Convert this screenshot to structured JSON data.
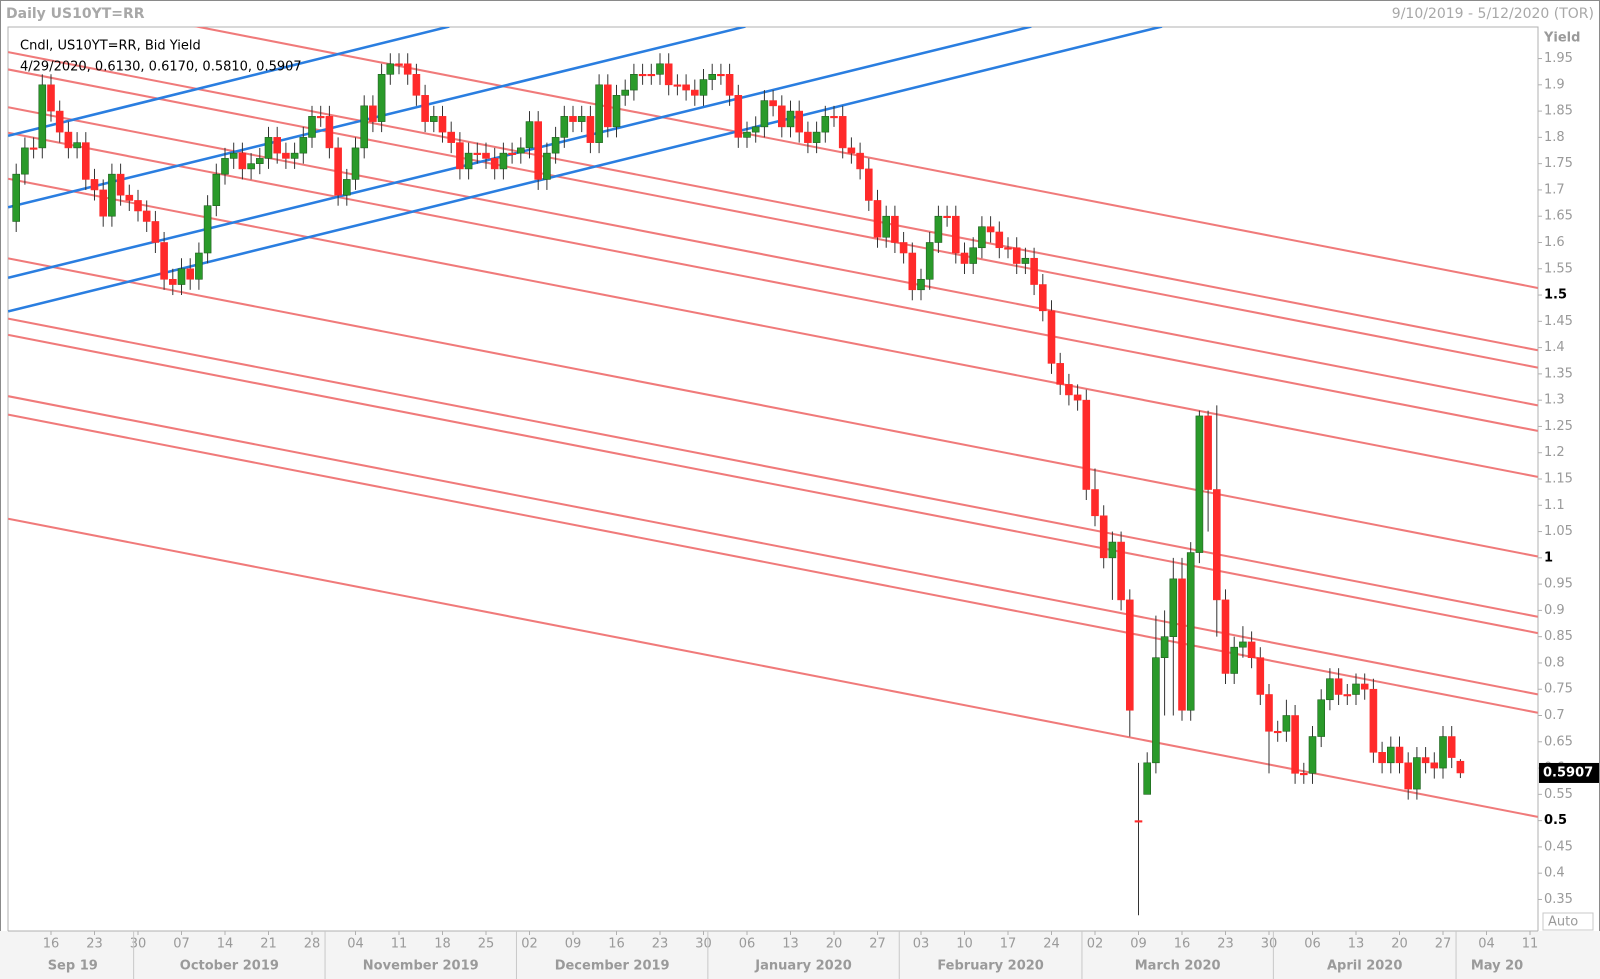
{
  "chart_data": {
    "type": "candlestick",
    "title": "Daily US10YT=RR",
    "date_range": "9/10/2019 - 5/12/2020 (TOR)",
    "legend_line1": "Cndl, US10YT=RR, Bid Yield",
    "legend_line2": "4/29/2020, 0.6130, 0.6170, 0.5810, 0.5907",
    "y_label": "Yield",
    "scale_mode": "Auto",
    "up_color": "#2a9a2a",
    "down_color": "#ff2a2a",
    "ylim": [
      0.29,
      2.01
    ],
    "yticks": [
      0.35,
      0.4,
      0.45,
      0.5,
      0.55,
      0.6,
      0.65,
      0.7,
      0.75,
      0.8,
      0.85,
      0.9,
      0.95,
      1,
      1.05,
      1.1,
      1.15,
      1.2,
      1.25,
      1.3,
      1.35,
      1.4,
      1.45,
      1.5,
      1.55,
      1.6,
      1.65,
      1.7,
      1.75,
      1.8,
      1.85,
      1.9,
      1.95
    ],
    "day_ticks": [
      "16",
      "23",
      "30",
      "07",
      "14",
      "21",
      "28",
      "04",
      "11",
      "18",
      "25",
      "02",
      "09",
      "16",
      "23",
      "30",
      "06",
      "13",
      "20",
      "27",
      "03",
      "10",
      "17",
      "24",
      "02",
      "09",
      "16",
      "23",
      "30",
      "06",
      "13",
      "20",
      "27",
      "04",
      "11"
    ],
    "month_labels": [
      "Sep 19",
      "October 2019",
      "November 2019",
      "December 2019",
      "January 2020",
      "February 2020",
      "March 2020",
      "April 2020",
      "May 20"
    ],
    "open": [
      1.64,
      1.73,
      1.78,
      1.78,
      1.9,
      1.85,
      1.81,
      1.78,
      1.79,
      1.72,
      1.7,
      1.65,
      1.73,
      1.69,
      1.68,
      1.66,
      1.64,
      1.6,
      1.53,
      1.52,
      1.55,
      1.53,
      1.58,
      1.67,
      1.73,
      1.76,
      1.77,
      1.74,
      1.75,
      1.76,
      1.8,
      1.77,
      1.76,
      1.77,
      1.8,
      1.84,
      1.84,
      1.78,
      1.69,
      1.72,
      1.78,
      1.86,
      1.83,
      1.92,
      1.94,
      1.94,
      1.92,
      1.88,
      1.83,
      1.84,
      1.81,
      1.79,
      1.74,
      1.77,
      1.77,
      1.76,
      1.74,
      1.77,
      1.77,
      1.78,
      1.83,
      1.72,
      1.77,
      1.8,
      1.84,
      1.83,
      1.84,
      1.79,
      1.9,
      1.82,
      1.88,
      1.89,
      1.92,
      1.92,
      1.92,
      1.94,
      1.9,
      1.9,
      1.89,
      1.88,
      1.91,
      1.92,
      1.92,
      1.88,
      1.8,
      1.81,
      1.82,
      1.87,
      1.86,
      1.82,
      1.85,
      1.81,
      1.79,
      1.81,
      1.84,
      1.84,
      1.78,
      1.77,
      1.74,
      1.68,
      1.61,
      1.65,
      1.6,
      1.58,
      1.51,
      1.53,
      1.6,
      1.65,
      1.65,
      1.58,
      1.56,
      1.59,
      1.63,
      1.62,
      1.59,
      1.59,
      1.56,
      1.57,
      1.52,
      1.47,
      1.37,
      1.33,
      1.31,
      1.3,
      1.13,
      1.08,
      1.0,
      1.03,
      0.92,
      0.5,
      0.55,
      0.61,
      0.81,
      0.85,
      0.96,
      0.71,
      1.01,
      1.27,
      1.13,
      0.92,
      0.78,
      0.83,
      0.84,
      0.81,
      0.74,
      0.67,
      0.67,
      0.7,
      0.59,
      0.59,
      0.66,
      0.73,
      0.77,
      0.74,
      0.74,
      0.76,
      0.75,
      0.63,
      0.61,
      0.64,
      0.61,
      0.56,
      0.62,
      0.61,
      0.6,
      0.66,
      0.613
    ],
    "high": [
      1.75,
      1.8,
      1.8,
      1.92,
      1.92,
      1.87,
      1.83,
      1.81,
      1.81,
      1.74,
      1.72,
      1.75,
      1.75,
      1.71,
      1.7,
      1.68,
      1.66,
      1.62,
      1.55,
      1.57,
      1.57,
      1.6,
      1.69,
      1.75,
      1.78,
      1.79,
      1.79,
      1.77,
      1.78,
      1.82,
      1.82,
      1.79,
      1.79,
      1.82,
      1.86,
      1.86,
      1.86,
      1.8,
      1.74,
      1.8,
      1.88,
      1.88,
      1.94,
      1.96,
      1.96,
      1.96,
      1.94,
      1.9,
      1.86,
      1.86,
      1.83,
      1.81,
      1.79,
      1.79,
      1.79,
      1.78,
      1.79,
      1.79,
      1.8,
      1.85,
      1.85,
      1.79,
      1.82,
      1.86,
      1.86,
      1.86,
      1.86,
      1.92,
      1.92,
      1.9,
      1.91,
      1.94,
      1.94,
      1.94,
      1.96,
      1.96,
      1.92,
      1.92,
      1.91,
      1.93,
      1.94,
      1.94,
      1.94,
      1.9,
      1.83,
      1.84,
      1.89,
      1.89,
      1.88,
      1.87,
      1.87,
      1.83,
      1.83,
      1.86,
      1.86,
      1.86,
      1.8,
      1.79,
      1.76,
      1.7,
      1.67,
      1.67,
      1.62,
      1.6,
      1.55,
      1.62,
      1.67,
      1.67,
      1.67,
      1.6,
      1.61,
      1.65,
      1.65,
      1.64,
      1.61,
      1.61,
      1.59,
      1.59,
      1.54,
      1.49,
      1.39,
      1.35,
      1.33,
      1.32,
      1.17,
      1.1,
      1.05,
      1.05,
      0.94,
      0.61,
      0.63,
      0.89,
      0.9,
      1.0,
      1.0,
      1.03,
      1.28,
      1.28,
      1.29,
      0.94,
      0.85,
      0.87,
      0.86,
      0.83,
      0.76,
      0.69,
      0.73,
      0.72,
      0.61,
      0.68,
      0.75,
      0.79,
      0.79,
      0.76,
      0.78,
      0.78,
      0.77,
      0.65,
      0.66,
      0.66,
      0.63,
      0.64,
      0.64,
      0.63,
      0.68,
      0.68,
      0.617
    ],
    "low": [
      1.62,
      1.71,
      1.76,
      1.76,
      1.83,
      1.79,
      1.76,
      1.76,
      1.7,
      1.68,
      1.63,
      1.63,
      1.67,
      1.66,
      1.64,
      1.62,
      1.58,
      1.51,
      1.5,
      1.5,
      1.51,
      1.51,
      1.56,
      1.65,
      1.71,
      1.74,
      1.72,
      1.72,
      1.73,
      1.74,
      1.75,
      1.74,
      1.74,
      1.75,
      1.78,
      1.82,
      1.76,
      1.67,
      1.67,
      1.7,
      1.76,
      1.81,
      1.81,
      1.9,
      1.92,
      1.9,
      1.86,
      1.81,
      1.81,
      1.79,
      1.77,
      1.72,
      1.72,
      1.75,
      1.74,
      1.72,
      1.72,
      1.75,
      1.75,
      1.76,
      1.7,
      1.7,
      1.75,
      1.78,
      1.81,
      1.81,
      1.77,
      1.77,
      1.8,
      1.8,
      1.86,
      1.87,
      1.9,
      1.9,
      1.9,
      1.88,
      1.88,
      1.87,
      1.86,
      1.86,
      1.89,
      1.9,
      1.86,
      1.78,
      1.78,
      1.79,
      1.8,
      1.84,
      1.8,
      1.8,
      1.79,
      1.77,
      1.77,
      1.79,
      1.82,
      1.76,
      1.75,
      1.72,
      1.66,
      1.59,
      1.59,
      1.58,
      1.56,
      1.49,
      1.49,
      1.51,
      1.58,
      1.63,
      1.56,
      1.54,
      1.54,
      1.57,
      1.6,
      1.57,
      1.57,
      1.54,
      1.54,
      1.5,
      1.45,
      1.35,
      1.31,
      1.29,
      1.28,
      1.11,
      1.06,
      0.98,
      0.92,
      0.9,
      0.66,
      0.32,
      0.56,
      0.59,
      0.7,
      0.7,
      0.69,
      0.69,
      0.99,
      1.05,
      0.85,
      0.76,
      0.76,
      0.81,
      0.79,
      0.72,
      0.59,
      0.65,
      0.65,
      0.57,
      0.57,
      0.57,
      0.64,
      0.71,
      0.72,
      0.72,
      0.72,
      0.73,
      0.61,
      0.59,
      0.59,
      0.59,
      0.54,
      0.54,
      0.59,
      0.58,
      0.58,
      0.6,
      0.581
    ],
    "close": [
      1.73,
      1.78,
      1.78,
      1.9,
      1.85,
      1.81,
      1.78,
      1.79,
      1.72,
      1.7,
      1.65,
      1.73,
      1.69,
      1.68,
      1.66,
      1.64,
      1.6,
      1.53,
      1.52,
      1.55,
      1.53,
      1.58,
      1.67,
      1.73,
      1.76,
      1.77,
      1.74,
      1.75,
      1.76,
      1.8,
      1.77,
      1.76,
      1.77,
      1.8,
      1.84,
      1.84,
      1.78,
      1.69,
      1.72,
      1.78,
      1.86,
      1.83,
      1.92,
      1.94,
      1.94,
      1.92,
      1.88,
      1.83,
      1.84,
      1.81,
      1.79,
      1.74,
      1.77,
      1.77,
      1.76,
      1.74,
      1.77,
      1.77,
      1.78,
      1.83,
      1.72,
      1.77,
      1.8,
      1.84,
      1.83,
      1.84,
      1.79,
      1.9,
      1.82,
      1.88,
      1.89,
      1.92,
      1.92,
      1.92,
      1.94,
      1.9,
      1.9,
      1.89,
      1.88,
      1.91,
      1.92,
      1.92,
      1.88,
      1.8,
      1.81,
      1.82,
      1.87,
      1.86,
      1.82,
      1.85,
      1.81,
      1.79,
      1.81,
      1.84,
      1.84,
      1.78,
      1.77,
      1.74,
      1.68,
      1.61,
      1.65,
      1.6,
      1.58,
      1.51,
      1.53,
      1.6,
      1.65,
      1.65,
      1.58,
      1.56,
      1.59,
      1.63,
      1.62,
      1.59,
      1.59,
      1.56,
      1.57,
      1.52,
      1.47,
      1.37,
      1.33,
      1.31,
      1.3,
      1.13,
      1.08,
      1.0,
      1.03,
      0.92,
      0.71,
      0.5,
      0.61,
      0.81,
      0.85,
      0.96,
      0.71,
      1.01,
      1.27,
      1.13,
      0.92,
      0.78,
      0.83,
      0.84,
      0.81,
      0.74,
      0.67,
      0.67,
      0.7,
      0.59,
      0.59,
      0.66,
      0.73,
      0.77,
      0.74,
      0.74,
      0.76,
      0.75,
      0.63,
      0.61,
      0.64,
      0.61,
      0.56,
      0.62,
      0.61,
      0.6,
      0.66,
      0.62,
      0.5907
    ]
  }
}
